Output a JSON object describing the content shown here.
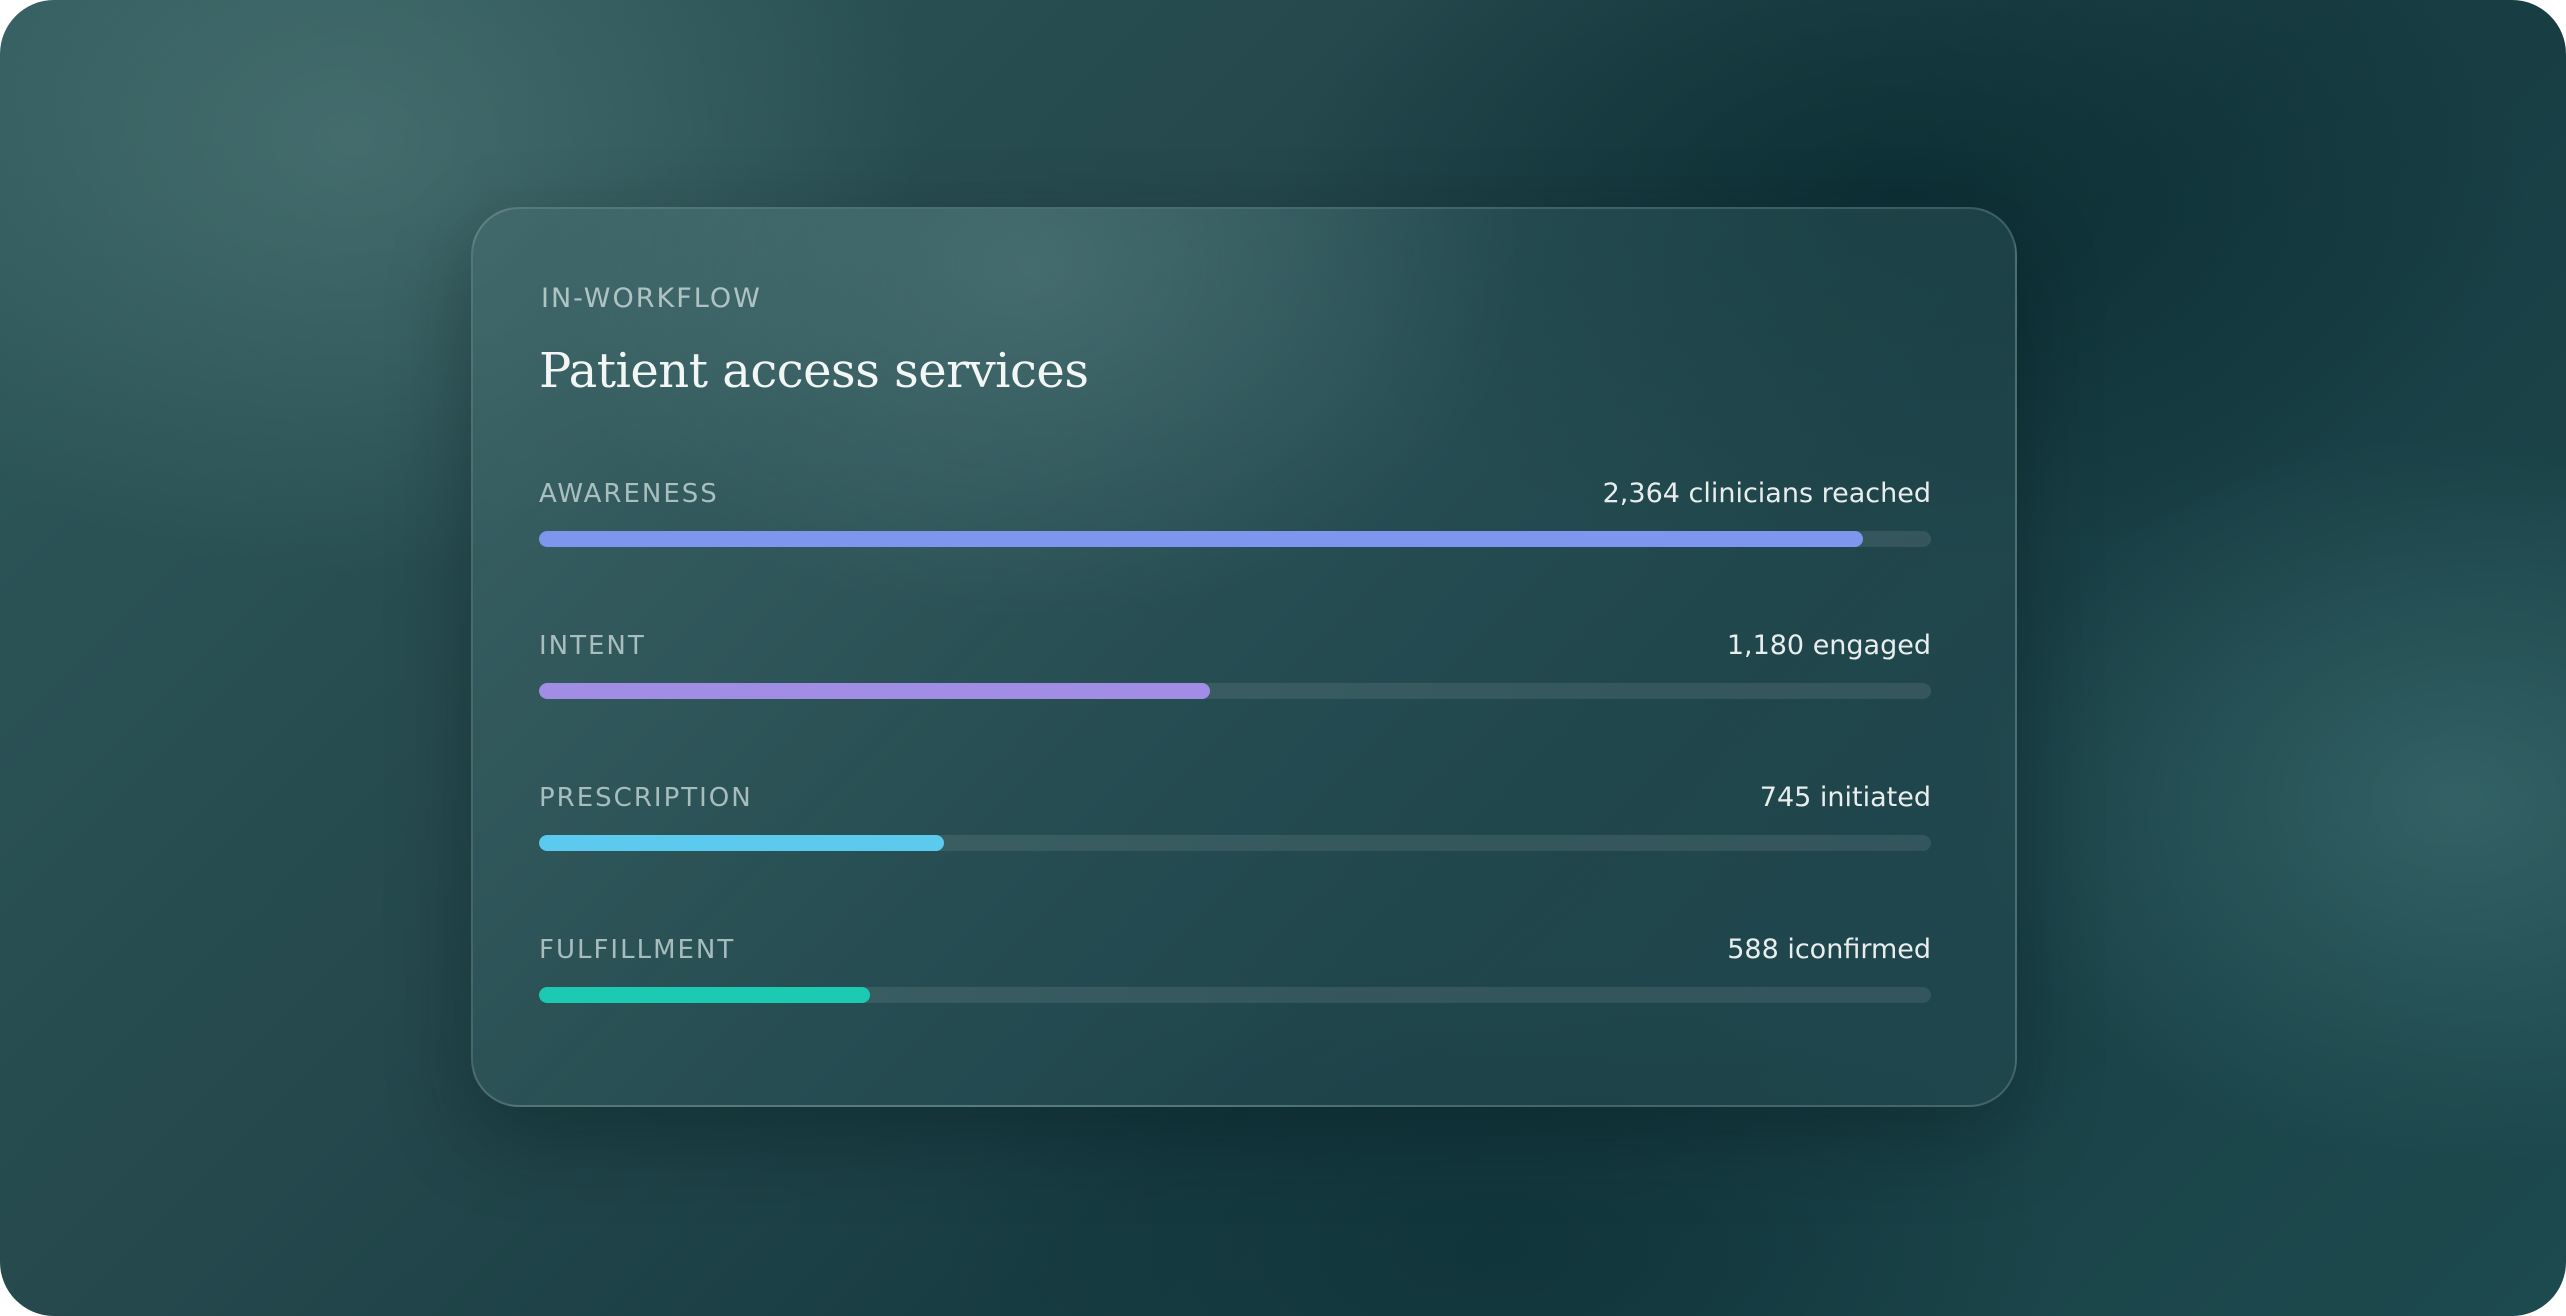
{
  "card": {
    "eyebrow": "IN-WORKFLOW",
    "title": "Patient access services"
  },
  "metrics": [
    {
      "label": "AWARENESS",
      "value": "2,364 clinicians reached",
      "progress": 0.951,
      "color": "#7f96ee"
    },
    {
      "label": "INTENT",
      "value": "1,180 engaged",
      "progress": 0.482,
      "color": "#a28de6"
    },
    {
      "label": "PRESCRIPTION",
      "value": "745 initiated",
      "progress": 0.291,
      "color": "#5ccaef"
    },
    {
      "label": "FULFILLMENT",
      "value": "588 iconfirmed",
      "progress": 0.238,
      "color": "#1cc9b3"
    }
  ]
}
